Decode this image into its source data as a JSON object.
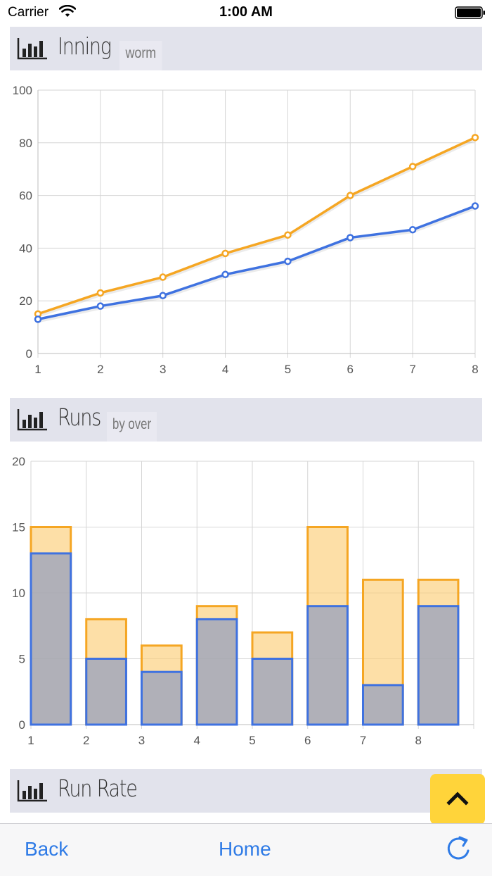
{
  "status_bar": {
    "carrier": "Carrier",
    "time": "1:00 AM"
  },
  "colors": {
    "series_a": "#f5a623",
    "series_b": "#3f72e0",
    "header_bg": "#e2e3ec",
    "accent": "#ffd43a",
    "link": "#2f7be6"
  },
  "sections": [
    {
      "title": "Inning",
      "subtitle": "worm",
      "icon": "bar-chart-icon"
    },
    {
      "title": "Runs",
      "subtitle": "by over",
      "icon": "bar-chart-icon"
    },
    {
      "title": "Run Rate",
      "subtitle": "",
      "icon": "bar-chart-icon"
    }
  ],
  "chart_data": [
    {
      "type": "line",
      "x": [
        1,
        2,
        3,
        4,
        5,
        6,
        7,
        8
      ],
      "series": [
        {
          "values": [
            15,
            23,
            29,
            38,
            45,
            60,
            71,
            82
          ],
          "color": "#f5a623"
        },
        {
          "values": [
            13,
            18,
            22,
            30,
            35,
            44,
            47,
            56
          ],
          "color": "#3f72e0"
        }
      ],
      "xlim": [
        1,
        8
      ],
      "ylim": [
        0,
        100
      ],
      "yticks": [
        0,
        20,
        40,
        60,
        80,
        100
      ],
      "xticks": [
        1,
        2,
        3,
        4,
        5,
        6,
        7,
        8
      ],
      "grid": true
    },
    {
      "type": "bar",
      "categories": [
        "1",
        "2",
        "3",
        "4",
        "5",
        "6",
        "7",
        "8"
      ],
      "series": [
        {
          "values": [
            15,
            8,
            6,
            9,
            7,
            15,
            11,
            11
          ],
          "color": "#f5a623"
        },
        {
          "values": [
            13,
            5,
            4,
            8,
            5,
            9,
            3,
            9
          ],
          "color": "#3f72e0"
        }
      ],
      "ylim": [
        0,
        20
      ],
      "yticks": [
        0,
        5,
        10,
        15,
        20
      ],
      "grid": true
    }
  ],
  "bottom_bar": {
    "back_label": "Back",
    "home_label": "Home",
    "refresh_icon": "refresh-icon"
  },
  "scroll_top_icon": "chevron-up-icon"
}
